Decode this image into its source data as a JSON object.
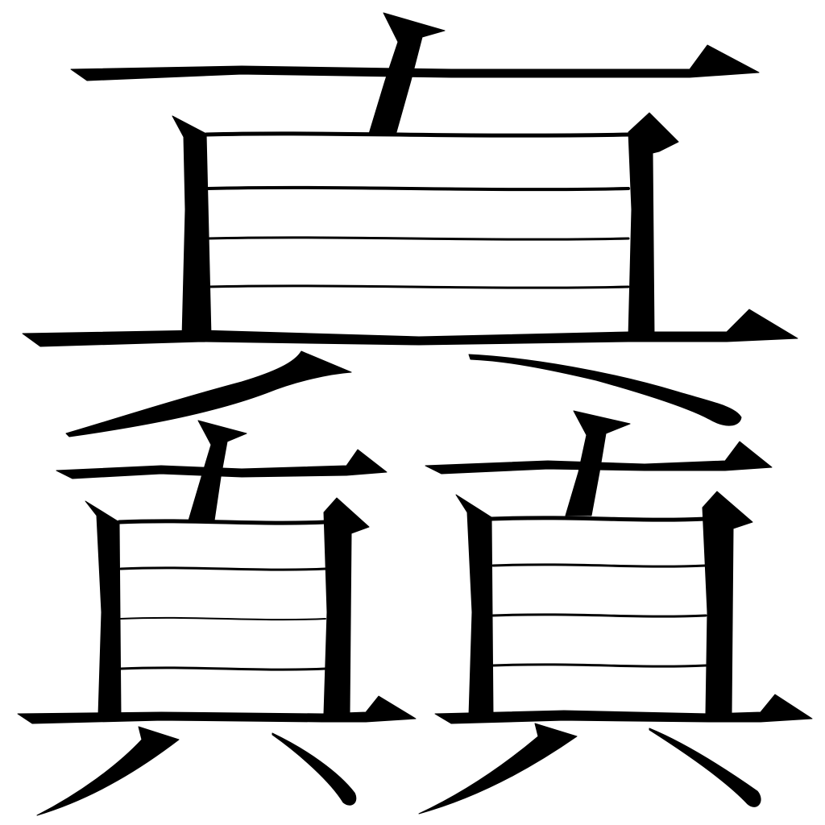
{
  "glyph": {
    "character": "𪓐",
    "colors": {
      "ink": "#000000",
      "paper": "#ffffff"
    }
  }
}
